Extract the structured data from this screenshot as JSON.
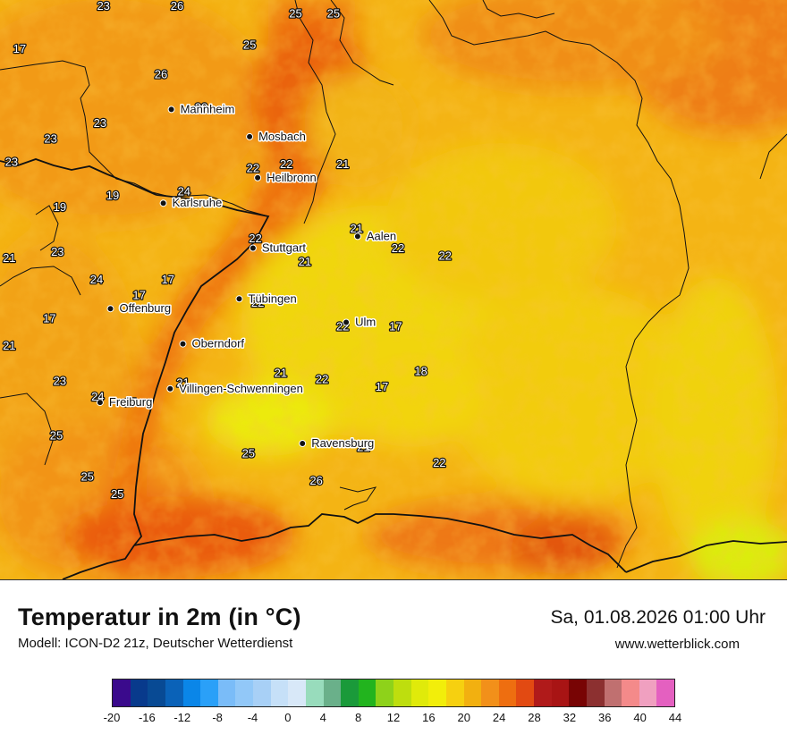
{
  "map": {
    "cities": [
      {
        "name": "Mannheim",
        "lon": 8.47,
        "lat": 49.49
      },
      {
        "name": "Mosbach",
        "lon": 9.15,
        "lat": 49.35
      },
      {
        "name": "Heilbronn",
        "lon": 9.22,
        "lat": 49.14
      },
      {
        "name": "Karlsruhe",
        "lon": 8.4,
        "lat": 49.01
      },
      {
        "name": "Stuttgart",
        "lon": 9.18,
        "lat": 48.78
      },
      {
        "name": "Aalen",
        "lon": 10.09,
        "lat": 48.84
      },
      {
        "name": "Tübingen",
        "lon": 9.06,
        "lat": 48.52
      },
      {
        "name": "Offenburg",
        "lon": 7.94,
        "lat": 48.47
      },
      {
        "name": "Ulm",
        "lon": 9.99,
        "lat": 48.4
      },
      {
        "name": "Oberndorf",
        "lon": 8.57,
        "lat": 48.29
      },
      {
        "name": "Villingen-Schwenningen",
        "lon": 8.46,
        "lat": 48.06
      },
      {
        "name": "Freiburg",
        "lon": 7.85,
        "lat": 47.99
      },
      {
        "name": "Ravensburg",
        "lon": 9.61,
        "lat": 47.78
      }
    ],
    "values": [
      {
        "v": "23",
        "lon": 7.88,
        "lat": 50.0
      },
      {
        "v": "26",
        "lon": 8.52,
        "lat": 50.0
      },
      {
        "v": "25",
        "lon": 9.55,
        "lat": 49.96
      },
      {
        "v": "25",
        "lon": 9.88,
        "lat": 49.96
      },
      {
        "v": "17",
        "lon": 7.15,
        "lat": 49.78
      },
      {
        "v": "25",
        "lon": 9.15,
        "lat": 49.8
      },
      {
        "v": "26",
        "lon": 8.38,
        "lat": 49.65
      },
      {
        "v": "23",
        "lon": 7.85,
        "lat": 49.4
      },
      {
        "v": "23",
        "lon": 7.42,
        "lat": 49.32
      },
      {
        "v": "23",
        "lon": 7.08,
        "lat": 49.2
      },
      {
        "v": "22",
        "lon": 9.18,
        "lat": 49.17
      },
      {
        "v": "22",
        "lon": 9.47,
        "lat": 49.19
      },
      {
        "v": "21",
        "lon": 9.96,
        "lat": 49.19
      },
      {
        "v": "24",
        "lon": 8.58,
        "lat": 49.05
      },
      {
        "v": "19",
        "lon": 7.96,
        "lat": 49.03
      },
      {
        "v": "19",
        "lon": 7.5,
        "lat": 48.97
      },
      {
        "v": "21",
        "lon": 10.08,
        "lat": 48.86
      },
      {
        "v": "22",
        "lon": 9.2,
        "lat": 48.81
      },
      {
        "v": "22",
        "lon": 10.44,
        "lat": 48.76
      },
      {
        "v": "22",
        "lon": 10.85,
        "lat": 48.72
      },
      {
        "v": "21",
        "lon": 7.06,
        "lat": 48.71
      },
      {
        "v": "23",
        "lon": 7.48,
        "lat": 48.74
      },
      {
        "v": "21",
        "lon": 9.63,
        "lat": 48.69
      },
      {
        "v": "24",
        "lon": 7.82,
        "lat": 48.6
      },
      {
        "v": "17",
        "lon": 8.44,
        "lat": 48.6
      },
      {
        "v": "17",
        "lon": 8.19,
        "lat": 48.52
      },
      {
        "v": "22",
        "lon": 9.22,
        "lat": 48.48
      },
      {
        "v": "17",
        "lon": 7.41,
        "lat": 48.4
      },
      {
        "v": "22",
        "lon": 9.96,
        "lat": 48.36
      },
      {
        "v": "17",
        "lon": 10.42,
        "lat": 48.36
      },
      {
        "v": "21",
        "lon": 7.06,
        "lat": 48.26
      },
      {
        "v": "18",
        "lon": 10.64,
        "lat": 48.13
      },
      {
        "v": "21",
        "lon": 9.42,
        "lat": 48.12
      },
      {
        "v": "22",
        "lon": 9.78,
        "lat": 48.09
      },
      {
        "v": "21",
        "lon": 8.57,
        "lat": 48.07
      },
      {
        "v": "23",
        "lon": 7.5,
        "lat": 48.08
      },
      {
        "v": "17",
        "lon": 10.3,
        "lat": 48.05
      },
      {
        "v": "24",
        "lon": 7.83,
        "lat": 48.0
      },
      {
        "v": "17",
        "lon": 8.11,
        "lat": 47.97
      },
      {
        "v": "25",
        "lon": 7.47,
        "lat": 47.8
      },
      {
        "v": "25",
        "lon": 9.14,
        "lat": 47.71
      },
      {
        "v": "21",
        "lon": 10.14,
        "lat": 47.74
      },
      {
        "v": "22",
        "lon": 10.8,
        "lat": 47.66
      },
      {
        "v": "25",
        "lon": 7.74,
        "lat": 47.59
      },
      {
        "v": "26",
        "lon": 9.73,
        "lat": 47.57
      },
      {
        "v": "25",
        "lon": 8.0,
        "lat": 47.5
      },
      {
        "v": "20",
        "lon": 8.73,
        "lat": 49.48
      }
    ]
  },
  "header": {
    "title": "Temperatur in 2m (in °C)",
    "model": "Modell: ICON-D2 21z, Deutscher Wetterdienst",
    "datetime": "Sa, 01.08.2026 01:00 Uhr",
    "website": "www.wetterblick.com"
  },
  "legend": {
    "colors": [
      "#3a0a8c",
      "#083a8c",
      "#084a94",
      "#0a62b8",
      "#0a86e8",
      "#2aa0f8",
      "#7abcf8",
      "#92c8f8",
      "#a8d0f6",
      "#c6e0f8",
      "#d8e8f8",
      "#98dcbc",
      "#6ab08a",
      "#1a9a3a",
      "#22b41e",
      "#8ed21a",
      "#bede0e",
      "#e0ea0a",
      "#f2ee0a",
      "#f6d010",
      "#f2b010",
      "#f2901a",
      "#ee6e10",
      "#e24a12",
      "#b01a1a",
      "#a81414",
      "#780404",
      "#8c3030",
      "#c07070",
      "#f48a8a",
      "#f0a0c0",
      "#e460c0"
    ],
    "ticks": [
      "-20",
      "-16",
      "-12",
      "-8",
      "-4",
      "0",
      "4",
      "8",
      "12",
      "16",
      "20",
      "24",
      "28",
      "32",
      "36",
      "40",
      "44"
    ]
  }
}
